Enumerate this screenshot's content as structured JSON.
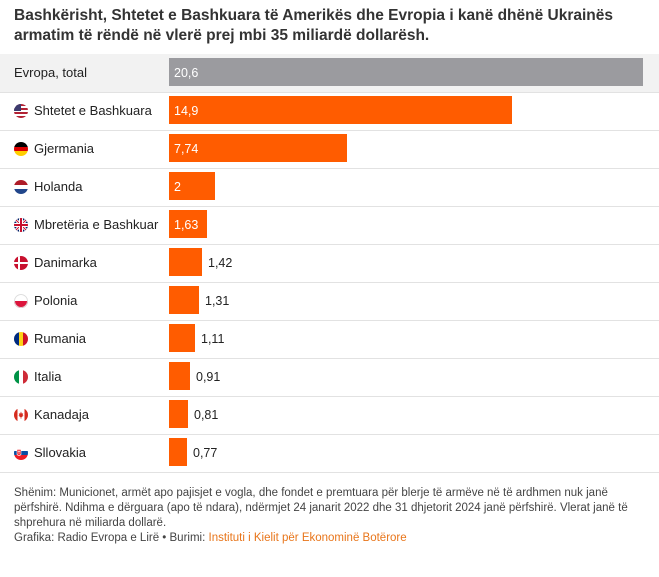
{
  "title": "Bashkërisht, Shtetet e Bashkuara të Amerikës dhe Evropia i kanë dhënë Ukrainës armatim të rëndë në vlerë prej mbi 35 miliardë dollarësh.",
  "colors": {
    "total_bar": "#9b9b9f",
    "country_bar": "#ff5c00"
  },
  "chart_data": {
    "type": "bar",
    "orientation": "horizontal",
    "title": "Bashkërisht, Shtetet e Bashkuara të Amerikës dhe Evropia i kanë dhënë Ukrainës armatim të rëndë në vlerë prej mbi 35 miliardë dollarësh.",
    "xlim": [
      0,
      20.6
    ],
    "grid": false,
    "categories": [
      "Evropa, total",
      "Shtetet e Bashkuara",
      "Gjermania",
      "Holanda",
      "Mbretëria e Bashkuar",
      "Danimarka",
      "Polonia",
      "Rumania",
      "Italia",
      "Kanadaja",
      "Sllovakia"
    ],
    "values": [
      20.6,
      14.9,
      7.74,
      2,
      1.63,
      1.42,
      1.31,
      1.11,
      0.91,
      0.81,
      0.77
    ],
    "value_labels": [
      "20,6",
      "14,9",
      "7,74",
      "2",
      "1,63",
      "1,42",
      "1,31",
      "1,11",
      "0,91",
      "0,81",
      "0,77"
    ],
    "flags": [
      "",
      "us-flag-icon",
      "de-flag-icon",
      "nl-flag-icon",
      "gb-flag-icon",
      "dk-flag-icon",
      "pl-flag-icon",
      "ro-flag-icon",
      "it-flag-icon",
      "ca-flag-icon",
      "sk-flag-icon"
    ]
  },
  "footer": {
    "note": "Shënim: Municionet, armët apo pajisjet e vogla, dhe fondet e premtuara për blerje të armëve në të ardhmen nuk janë përfshirë. Ndihma e dërguara (apo të ndara), ndërmjet 24 janarit 2022 dhe 31 dhjetorit 2024 janë përfshirë. Vlerat janë të shprehura në miliarda dollarë.",
    "credit_prefix": "Grafika: Radio Evropa e Lirë • Burimi: ",
    "source": "Instituti i Kielit për Ekonominë Botërore"
  }
}
